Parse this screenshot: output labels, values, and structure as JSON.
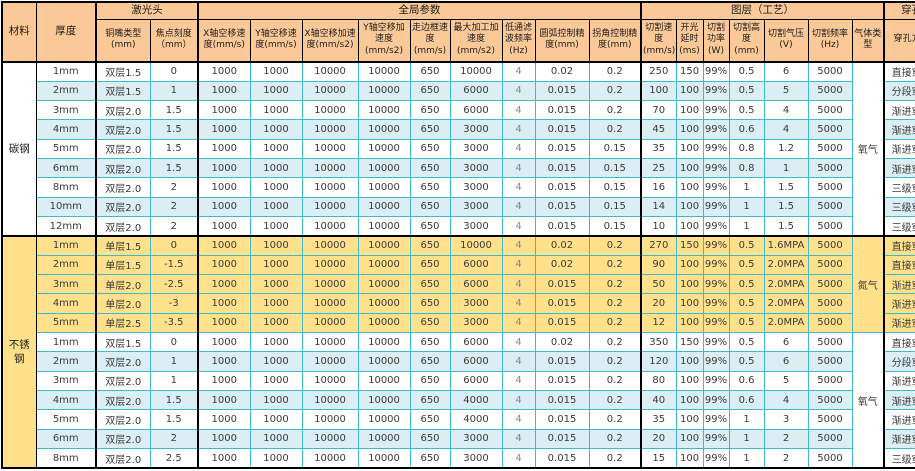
{
  "colors": {
    "header_bg": "#FBC998",
    "row_stripe_blue": "#DAEEF3",
    "nitrogen_row_yellow": "#FFE18C",
    "cut_speed_green": "#A9D08E",
    "grid_line": "#3EB8CC"
  },
  "headers": {
    "material": "材料",
    "thickness": "厚度",
    "laser_head": "激光头",
    "global_params": "全局参数",
    "layer_process": "图层（工艺）",
    "pierce": "穿孔"
  },
  "sub_headers": [
    "铜嘴类型(mm)",
    "焦点刻度（mm）",
    "X轴空移速度(mm/s)",
    "Y轴空移速度(mm/s)",
    "X轴空移加速度(mm/s2)",
    "Y轴空移加速度(mm/s2)",
    "走边框速度(mm/s)",
    "最大加工加速度(mm/s2)",
    "低通滤波频率(Hz)",
    "圆弧控制精度(mm)",
    "拐角控制精度(mm)",
    "切割速度(mm/s)",
    "开光延时(ms)",
    "切割功率(W)",
    "切割高度(mm)",
    "切割气压(V)",
    "切割频率(Hz)",
    "气体类型",
    "穿孔方式"
  ],
  "material_spans": [
    {
      "label": "碳钢",
      "start": 0,
      "count": 9
    },
    {
      "label": "不锈钢",
      "start": 9,
      "count": 12
    }
  ],
  "gas_spans": [
    {
      "label": "氧气",
      "start": 0,
      "count": 9,
      "bg": "plain"
    },
    {
      "label": "氮气",
      "start": 9,
      "count": 5,
      "bg": "yellow"
    },
    {
      "label": "氧气",
      "start": 14,
      "count": 7,
      "bg": "plain"
    }
  ],
  "rows": [
    {
      "color": "white",
      "cells": [
        "1mm",
        "双层1.5",
        "0",
        "1000",
        "1000",
        "10000",
        "10000",
        "650",
        "10000",
        "4",
        "0.02",
        "0.2",
        "250",
        "150",
        "99%",
        "0.5",
        "6",
        "5000",
        "直接穿孔"
      ]
    },
    {
      "color": "blue",
      "cells": [
        "2mm",
        "双层1.5",
        "1",
        "1000",
        "1000",
        "10000",
        "10000",
        "650",
        "6000",
        "4",
        "0.015",
        "0.2",
        "100",
        "100",
        "99%",
        "0.5",
        "5",
        "5000",
        "分段穿孔"
      ]
    },
    {
      "color": "white",
      "cells": [
        "3mm",
        "双层2.0",
        "1.5",
        "1000",
        "1000",
        "10000",
        "10000",
        "650",
        "6000",
        "4",
        "0.015",
        "0.2",
        "70",
        "100",
        "99%",
        "0.5",
        "4",
        "5000",
        "渐进穿孔"
      ]
    },
    {
      "color": "blue",
      "cells": [
        "4mm",
        "双层2.0",
        "1.5",
        "1000",
        "1000",
        "10000",
        "10000",
        "650",
        "3000",
        "4",
        "0.015",
        "0.2",
        "45",
        "100",
        "99%",
        "0.6",
        "4",
        "5000",
        "渐进穿孔"
      ]
    },
    {
      "color": "white",
      "cells": [
        "5mm",
        "双层2.0",
        "1.5",
        "1000",
        "1000",
        "10000",
        "10000",
        "650",
        "3000",
        "4",
        "0.015",
        "0.15",
        "35",
        "100",
        "99%",
        "0.8",
        "1.2",
        "5000",
        "渐进穿孔"
      ]
    },
    {
      "color": "blue",
      "cells": [
        "6mm",
        "双层2.0",
        "1.5",
        "1000",
        "1000",
        "10000",
        "10000",
        "650",
        "3000",
        "4",
        "0.015",
        "0.15",
        "25",
        "100",
        "99%",
        "0.8",
        "1",
        "5000",
        "渐进穿孔"
      ]
    },
    {
      "color": "white",
      "cells": [
        "8mm",
        "双层2.0",
        "2",
        "1000",
        "1000",
        "10000",
        "10000",
        "650",
        "3000",
        "4",
        "0.015",
        "0.15",
        "16",
        "100",
        "99%",
        "1",
        "1.5",
        "5000",
        "三级穿孔"
      ]
    },
    {
      "color": "blue",
      "cells": [
        "10mm",
        "双层2.0",
        "2",
        "1000",
        "1000",
        "10000",
        "10000",
        "650",
        "3000",
        "4",
        "0.015",
        "0.15",
        "14",
        "100",
        "99%",
        "1",
        "1.5",
        "5000",
        "三级穿孔"
      ]
    },
    {
      "color": "white",
      "cells": [
        "12mm",
        "双层2.0",
        "2",
        "1000",
        "1000",
        "10000",
        "10000",
        "650",
        "3000",
        "4",
        "0.015",
        "0.15",
        "10",
        "100",
        "99%",
        "1",
        "1.5",
        "5000",
        "三级穿孔"
      ]
    },
    {
      "color": "yellow",
      "cells": [
        "1mm",
        "单层1.5",
        "0",
        "1000",
        "1000",
        "10000",
        "10000",
        "650",
        "10000",
        "4",
        "0.02",
        "0.2",
        "270",
        "150",
        "99%",
        "0.5",
        "1.6MPA",
        "5000",
        "直接穿孔"
      ]
    },
    {
      "color": "yellow",
      "cells": [
        "2mm",
        "单层1.5",
        "-1.5",
        "1000",
        "1000",
        "10000",
        "10000",
        "650",
        "6000",
        "4",
        "0.02",
        "0.2",
        "90",
        "100",
        "99%",
        "0.5",
        "2.0MPA",
        "5000",
        "直接穿孔"
      ]
    },
    {
      "color": "yellow",
      "cells": [
        "3mm",
        "单层2.0",
        "-2.5",
        "1000",
        "1000",
        "10000",
        "10000",
        "650",
        "6000",
        "4",
        "0.015",
        "0.2",
        "50",
        "100",
        "99%",
        "0.5",
        "2.0MPA",
        "5000",
        "渐进穿孔"
      ]
    },
    {
      "color": "yellow",
      "cells": [
        "4mm",
        "单层2.0",
        "-3",
        "1000",
        "1000",
        "10000",
        "10000",
        "650",
        "3000",
        "4",
        "0.015",
        "0.2",
        "20",
        "100",
        "99%",
        "0.5",
        "2.0MPA",
        "5000",
        "渐进穿孔"
      ]
    },
    {
      "color": "yellow",
      "cells": [
        "5mm",
        "单层2.5",
        "-3.5",
        "1000",
        "1000",
        "10000",
        "10000",
        "650",
        "3000",
        "4",
        "0.015",
        "0.2",
        "12",
        "100",
        "99%",
        "0.5",
        "2.0MPA",
        "5000",
        "渐进穿孔"
      ]
    },
    {
      "color": "white",
      "cells": [
        "1mm",
        "双层1.5",
        "0",
        "1000",
        "1000",
        "10000",
        "10000",
        "650",
        "6000",
        "4",
        "0.02",
        "0.2",
        "350",
        "150",
        "99%",
        "0.5",
        "6",
        "5000",
        "直接穿孔"
      ]
    },
    {
      "color": "blue",
      "cells": [
        "2mm",
        "双层2.0",
        "1",
        "1000",
        "1000",
        "10000",
        "10000",
        "650",
        "6000",
        "4",
        "0.015",
        "0.2",
        "120",
        "100",
        "99%",
        "0.5",
        "6",
        "5000",
        "分段穿孔"
      ]
    },
    {
      "color": "white",
      "cells": [
        "3mm",
        "双层2.0",
        "1",
        "1000",
        "1000",
        "10000",
        "10000",
        "650",
        "6000",
        "4",
        "0.015",
        "0.2",
        "80",
        "100",
        "99%",
        "0.6",
        "5",
        "5000",
        "渐进穿孔"
      ]
    },
    {
      "color": "blue",
      "cells": [
        "4mm",
        "双层2.0",
        "1.5",
        "1000",
        "1000",
        "10000",
        "10000",
        "650",
        "4000",
        "4",
        "0.015",
        "0.2",
        "40",
        "100",
        "99%",
        "0.6",
        "4",
        "5000",
        "渐进穿孔"
      ]
    },
    {
      "color": "white",
      "cells": [
        "5mm",
        "双层2.0",
        "1.5",
        "1000",
        "1000",
        "10000",
        "10000",
        "650",
        "4000",
        "4",
        "0.015",
        "0.2",
        "35",
        "100",
        "99%",
        "1",
        "3",
        "5000",
        "渐进穿孔"
      ]
    },
    {
      "color": "blue",
      "cells": [
        "6mm",
        "双层2.0",
        "2",
        "1000",
        "1000",
        "10000",
        "10000",
        "650",
        "3000",
        "4",
        "0.015",
        "0.2",
        "20",
        "100",
        "99%",
        "1",
        "2",
        "5000",
        "渐进穿孔"
      ]
    },
    {
      "color": "white",
      "cells": [
        "8mm",
        "双层2.0",
        "2.5",
        "1000",
        "1000",
        "10000",
        "10000",
        "650",
        "3000",
        "4",
        "0.015",
        "0.2",
        "15",
        "100",
        "99%",
        "1",
        "2",
        "5000",
        "三级穿孔"
      ]
    }
  ]
}
